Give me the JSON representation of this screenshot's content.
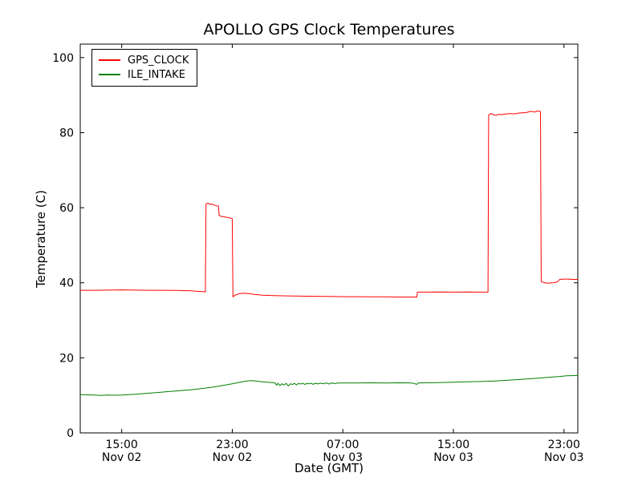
{
  "chart_data": {
    "type": "line",
    "title": "APOLLO GPS Clock Temperatures",
    "xlabel": "Date (GMT)",
    "ylabel": "Temperature (C)",
    "grid": false,
    "legend_position": "upper left",
    "x_unit": "hours after Nov 02 12:00 GMT",
    "xlim": [
      0,
      36
    ],
    "ylim": [
      0,
      103.6
    ],
    "y_ticks": [
      0,
      20,
      40,
      60,
      80,
      100
    ],
    "x_ticks": [
      {
        "pos": 3,
        "time": "15:00",
        "date": "Nov 02"
      },
      {
        "pos": 11,
        "time": "23:00",
        "date": "Nov 02"
      },
      {
        "pos": 19,
        "time": "07:00",
        "date": "Nov 03"
      },
      {
        "pos": 27,
        "time": "15:00",
        "date": "Nov 03"
      },
      {
        "pos": 35,
        "time": "23:00",
        "date": "Nov 03"
      }
    ],
    "series": [
      {
        "name": "GPS_CLOCK",
        "color": "#ff0000",
        "points": [
          [
            0,
            38.0
          ],
          [
            1,
            38.0
          ],
          [
            2,
            38.05
          ],
          [
            3,
            38.1
          ],
          [
            4,
            38.05
          ],
          [
            5,
            38.0
          ],
          [
            6,
            38.0
          ],
          [
            7,
            37.95
          ],
          [
            8,
            37.85
          ],
          [
            8.6,
            37.7
          ],
          [
            9.0,
            37.6
          ],
          [
            9.05,
            37.6
          ],
          [
            9.1,
            61.0
          ],
          [
            9.25,
            61.2
          ],
          [
            9.4,
            60.9
          ],
          [
            9.5,
            61.0
          ],
          [
            9.7,
            60.7
          ],
          [
            9.9,
            60.5
          ],
          [
            10.0,
            60.4
          ],
          [
            10.05,
            57.9
          ],
          [
            10.2,
            57.7
          ],
          [
            10.5,
            57.5
          ],
          [
            10.8,
            57.3
          ],
          [
            11.0,
            57.1
          ],
          [
            11.05,
            36.3
          ],
          [
            11.2,
            36.7
          ],
          [
            11.5,
            37.1
          ],
          [
            11.8,
            37.2
          ],
          [
            12.2,
            37.1
          ],
          [
            12.6,
            36.9
          ],
          [
            13.2,
            36.7
          ],
          [
            14,
            36.6
          ],
          [
            15,
            36.5
          ],
          [
            16,
            36.45
          ],
          [
            17,
            36.4
          ],
          [
            18,
            36.35
          ],
          [
            19,
            36.3
          ],
          [
            20,
            36.3
          ],
          [
            21,
            36.25
          ],
          [
            22,
            36.25
          ],
          [
            23,
            36.2
          ],
          [
            24,
            36.2
          ],
          [
            24.35,
            36.2
          ],
          [
            24.4,
            37.5
          ],
          [
            25,
            37.5
          ],
          [
            26,
            37.55
          ],
          [
            27,
            37.5
          ],
          [
            28,
            37.55
          ],
          [
            29,
            37.5
          ],
          [
            29.5,
            37.5
          ],
          [
            29.55,
            84.6
          ],
          [
            29.7,
            85.1
          ],
          [
            29.9,
            84.8
          ],
          [
            30.1,
            84.6
          ],
          [
            30.3,
            84.9
          ],
          [
            30.5,
            84.8
          ],
          [
            30.8,
            85.0
          ],
          [
            31.1,
            85.1
          ],
          [
            31.4,
            85.0
          ],
          [
            31.7,
            85.2
          ],
          [
            32.0,
            85.3
          ],
          [
            32.3,
            85.4
          ],
          [
            32.6,
            85.7
          ],
          [
            32.9,
            85.5
          ],
          [
            33.1,
            85.8
          ],
          [
            33.3,
            85.6
          ],
          [
            33.35,
            40.3
          ],
          [
            33.6,
            40.0
          ],
          [
            33.9,
            39.9
          ],
          [
            34.2,
            40.0
          ],
          [
            34.5,
            40.2
          ],
          [
            34.7,
            40.9
          ],
          [
            35.0,
            41.0
          ],
          [
            35.3,
            41.0
          ],
          [
            35.6,
            40.9
          ],
          [
            36,
            40.9
          ]
        ]
      },
      {
        "name": "ILE_INTAKE",
        "color": "#008000",
        "points": [
          [
            0,
            10.2
          ],
          [
            0.5,
            10.15
          ],
          [
            1,
            10.1
          ],
          [
            1.5,
            10.0
          ],
          [
            2,
            10.1
          ],
          [
            2.5,
            10.05
          ],
          [
            3,
            10.1
          ],
          [
            3.5,
            10.2
          ],
          [
            4,
            10.3
          ],
          [
            4.5,
            10.45
          ],
          [
            5,
            10.6
          ],
          [
            5.5,
            10.75
          ],
          [
            6,
            10.9
          ],
          [
            6.5,
            11.05
          ],
          [
            7,
            11.2
          ],
          [
            7.5,
            11.35
          ],
          [
            8,
            11.5
          ],
          [
            8.5,
            11.7
          ],
          [
            9,
            11.9
          ],
          [
            9.5,
            12.15
          ],
          [
            10,
            12.45
          ],
          [
            10.5,
            12.75
          ],
          [
            11,
            13.1
          ],
          [
            11.5,
            13.45
          ],
          [
            12,
            13.8
          ],
          [
            12.3,
            13.95
          ],
          [
            12.7,
            13.85
          ],
          [
            13.1,
            13.65
          ],
          [
            13.5,
            13.5
          ],
          [
            13.9,
            13.4
          ],
          [
            14.1,
            13.3
          ],
          [
            14.2,
            12.7
          ],
          [
            14.3,
            13.2
          ],
          [
            14.45,
            12.6
          ],
          [
            14.6,
            13.1
          ],
          [
            14.75,
            12.8
          ],
          [
            14.9,
            13.2
          ],
          [
            15.05,
            12.5
          ],
          [
            15.2,
            13.1
          ],
          [
            15.35,
            12.9
          ],
          [
            15.5,
            13.2
          ],
          [
            15.65,
            12.8
          ],
          [
            15.8,
            13.2
          ],
          [
            15.95,
            13.0
          ],
          [
            16.1,
            13.25
          ],
          [
            16.25,
            12.9
          ],
          [
            16.4,
            13.2
          ],
          [
            16.55,
            13.05
          ],
          [
            16.7,
            13.25
          ],
          [
            16.85,
            12.95
          ],
          [
            17.0,
            13.2
          ],
          [
            17.2,
            13.05
          ],
          [
            17.4,
            13.25
          ],
          [
            17.6,
            13.1
          ],
          [
            17.8,
            13.3
          ],
          [
            18.0,
            13.0
          ],
          [
            18.2,
            13.3
          ],
          [
            18.4,
            13.15
          ],
          [
            18.7,
            13.3
          ],
          [
            19.2,
            13.3
          ],
          [
            20,
            13.3
          ],
          [
            21,
            13.35
          ],
          [
            22,
            13.3
          ],
          [
            23,
            13.35
          ],
          [
            24,
            13.3
          ],
          [
            24.35,
            12.95
          ],
          [
            24.45,
            13.3
          ],
          [
            25,
            13.35
          ],
          [
            26,
            13.4
          ],
          [
            27,
            13.5
          ],
          [
            28,
            13.6
          ],
          [
            29,
            13.7
          ],
          [
            30,
            13.85
          ],
          [
            31,
            14.05
          ],
          [
            32,
            14.3
          ],
          [
            33,
            14.55
          ],
          [
            34,
            14.85
          ],
          [
            34.6,
            15.0
          ],
          [
            35.2,
            15.2
          ],
          [
            36,
            15.3
          ]
        ]
      }
    ]
  }
}
